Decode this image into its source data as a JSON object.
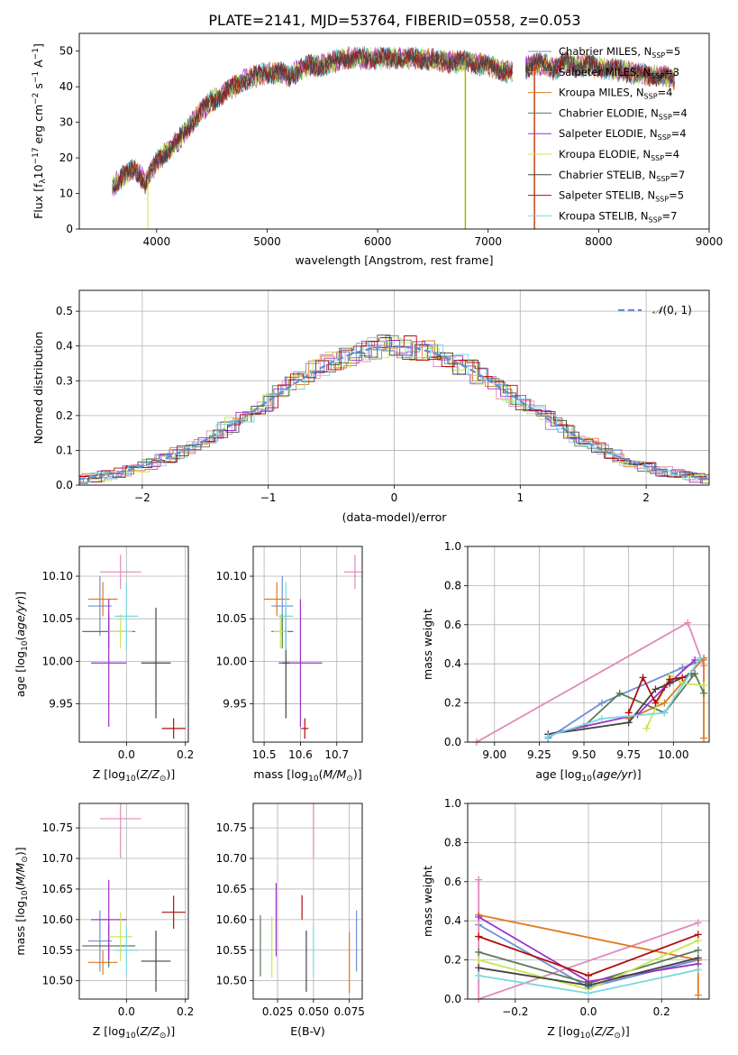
{
  "title": "PLATE=2141, MJD=53764, FIBERID=0558, z=0.053",
  "colors": {
    "Chabrier MILES": "#6f8fd6",
    "Salpeter MILES": "#e08ab8",
    "Kroupa MILES": "#e07a20",
    "Chabrier ELODIE": "#5a7a5a",
    "Salpeter ELODIE": "#9b30c8",
    "Kroupa ELODIE": "#c8e650",
    "Chabrier STELIB": "#444444",
    "Salpeter STELIB": "#b00e0e",
    "Kroupa STELIB": "#7ad8e0",
    "normal": "#5b8fd8",
    "grid": "#b0b0b0"
  },
  "chart_data": [
    {
      "id": "spectrum",
      "type": "line",
      "xlabel": "wavelength [Angstrom, rest frame]",
      "ylabel": "Flux [f",
      "xlim": [
        3300,
        9000
      ],
      "ylim": [
        0,
        55
      ],
      "xticks": [
        "4000",
        "5000",
        "6000",
        "7000",
        "8000",
        "9000"
      ],
      "yticks": [
        "0",
        "10",
        "20",
        "30",
        "40",
        "50"
      ],
      "continuum": [
        [
          3600,
          12
        ],
        [
          3700,
          15
        ],
        [
          3800,
          17
        ],
        [
          3900,
          13
        ],
        [
          4000,
          19
        ],
        [
          4100,
          22
        ],
        [
          4200,
          25
        ],
        [
          4300,
          29
        ],
        [
          4400,
          33
        ],
        [
          4500,
          36
        ],
        [
          4600,
          38
        ],
        [
          4700,
          40
        ],
        [
          4800,
          42
        ],
        [
          4900,
          43
        ],
        [
          5000,
          44
        ],
        [
          5100,
          44
        ],
        [
          5200,
          43
        ],
        [
          5300,
          45
        ],
        [
          5400,
          46
        ],
        [
          5500,
          46
        ],
        [
          5600,
          47
        ],
        [
          5700,
          48
        ],
        [
          5800,
          48
        ],
        [
          5900,
          48
        ],
        [
          6000,
          48
        ],
        [
          6100,
          48
        ],
        [
          6200,
          48
        ],
        [
          6300,
          48
        ],
        [
          6400,
          48
        ],
        [
          6500,
          47.5
        ],
        [
          6600,
          47
        ],
        [
          6700,
          47
        ],
        [
          6800,
          47
        ],
        [
          6900,
          46.5
        ],
        [
          7000,
          46
        ],
        [
          7100,
          45
        ],
        [
          7200,
          44
        ],
        [
          7300,
          45
        ],
        [
          7400,
          46
        ],
        [
          7500,
          46.5
        ],
        [
          7600,
          45
        ],
        [
          7700,
          47
        ],
        [
          7800,
          46
        ],
        [
          7900,
          46
        ],
        [
          8000,
          45.5
        ],
        [
          8100,
          45
        ],
        [
          8200,
          44.5
        ],
        [
          8300,
          44
        ],
        [
          8400,
          43.5
        ],
        [
          8500,
          43
        ],
        [
          8600,
          43
        ],
        [
          8690,
          42
        ]
      ],
      "legend": [
        {
          "label": "Chabrier MILES, N",
          "n": "5"
        },
        {
          "label": "Salpeter MILES, N",
          "n": "3"
        },
        {
          "label": "Kroupa MILES, N",
          "n": "4"
        },
        {
          "label": "Chabrier ELODIE, N",
          "n": "4"
        },
        {
          "label": "Salpeter ELODIE, N",
          "n": "4"
        },
        {
          "label": "Kroupa ELODIE, N",
          "n": "4"
        },
        {
          "label": "Chabrier STELIB, N",
          "n": "7"
        },
        {
          "label": "Salpeter STELIB, N",
          "n": "5"
        },
        {
          "label": "Kroupa STELIB, N",
          "n": "7"
        }
      ]
    },
    {
      "id": "residuals",
      "type": "line",
      "xlabel": "(data-model)/error",
      "ylabel": "Normed distribution",
      "xlim": [
        -2.5,
        2.5
      ],
      "ylim": [
        0,
        0.56
      ],
      "xticks": [
        "-2",
        "-1",
        "0",
        "1",
        "2"
      ],
      "yticks": [
        "0.0",
        "0.1",
        "0.2",
        "0.3",
        "0.4",
        "0.5"
      ],
      "legend_math": "(0, 1)"
    },
    {
      "id": "age-Z",
      "type": "scatter",
      "xlabel": "Z [log",
      "ylabel": "age  [log",
      "xlim": [
        -0.16,
        0.21
      ],
      "ylim": [
        9.905,
        10.135
      ],
      "xticks": [
        "0.0",
        "0.2"
      ],
      "yticks": [
        "9.95",
        "10.00",
        "10.05",
        "10.10"
      ],
      "points": [
        {
          "s": "Chabrier MILES",
          "x": -0.09,
          "y": 10.065,
          "xe": 0.04,
          "ye": 0.035
        },
        {
          "s": "Salpeter MILES",
          "x": -0.02,
          "y": 10.105,
          "xe": 0.07,
          "ye": 0.02
        },
        {
          "s": "Kroupa MILES",
          "x": -0.08,
          "y": 10.073,
          "xe": 0.05,
          "ye": 0.02
        },
        {
          "s": "Chabrier ELODIE",
          "x": -0.06,
          "y": 10.035,
          "xe": 0.09,
          "ye": 0.02
        },
        {
          "s": "Salpeter ELODIE",
          "x": -0.06,
          "y": 9.998,
          "xe": 0.06,
          "ye": 0.075
        },
        {
          "s": "Kroupa ELODIE",
          "x": -0.02,
          "y": 10.035,
          "xe": 0.04,
          "ye": 0.02
        },
        {
          "s": "Chabrier STELIB",
          "x": 0.1,
          "y": 9.998,
          "xe": 0.05,
          "ye": 0.065
        },
        {
          "s": "Salpeter STELIB",
          "x": 0.16,
          "y": 9.921,
          "xe": 0.04,
          "ye": 0.012
        },
        {
          "s": "Kroupa STELIB",
          "x": 0.0,
          "y": 10.053,
          "xe": 0.04,
          "ye": 0.04
        }
      ]
    },
    {
      "id": "age-mass",
      "type": "scatter",
      "xlabel": "mass [log",
      "ylabel": "",
      "xlim": [
        10.47,
        10.77
      ],
      "ylim": [
        9.905,
        10.135
      ],
      "xticks": [
        "10.5",
        "10.6",
        "10.7"
      ],
      "yticks": [
        "9.95",
        "10.00",
        "10.05",
        "10.10"
      ],
      "points": [
        {
          "s": "Chabrier MILES",
          "x": 10.55,
          "y": 10.065,
          "xe": 0.03,
          "ye": 0.035
        },
        {
          "s": "Salpeter MILES",
          "x": 10.75,
          "y": 10.105,
          "xe": 0.03,
          "ye": 0.02
        },
        {
          "s": "Kroupa MILES",
          "x": 10.535,
          "y": 10.073,
          "xe": 0.035,
          "ye": 0.02
        },
        {
          "s": "Chabrier ELODIE",
          "x": 10.55,
          "y": 10.035,
          "xe": 0.03,
          "ye": 0.02
        },
        {
          "s": "Salpeter ELODIE",
          "x": 10.6,
          "y": 9.998,
          "xe": 0.06,
          "ye": 0.075
        },
        {
          "s": "Kroupa ELODIE",
          "x": 10.545,
          "y": 10.035,
          "xe": 0.02,
          "ye": 0.02
        },
        {
          "s": "Chabrier STELIB",
          "x": 10.56,
          "y": 9.998,
          "xe": 0.01,
          "ye": 0.065
        },
        {
          "s": "Salpeter STELIB",
          "x": 10.612,
          "y": 9.921,
          "xe": 0.01,
          "ye": 0.012
        },
        {
          "s": "Kroupa STELIB",
          "x": 10.56,
          "y": 10.053,
          "xe": 0.02,
          "ye": 0.04
        }
      ]
    },
    {
      "id": "weight-age",
      "type": "line",
      "xlabel": "age  [log",
      "ylabel": "mass weight",
      "xlim": [
        8.85,
        10.2
      ],
      "ylim": [
        0,
        1.0
      ],
      "xticks": [
        "9.00",
        "9.25",
        "9.50",
        "9.75",
        "10.00"
      ],
      "yticks": [
        "0.0",
        "0.2",
        "0.4",
        "0.6",
        "0.8",
        "1.0"
      ],
      "series": [
        {
          "s": "Chabrier MILES",
          "x": [
            9.3,
            9.6,
            10.05,
            10.17
          ],
          "y": [
            0.02,
            0.2,
            0.38,
            0.42
          ]
        },
        {
          "s": "Salpeter MILES",
          "x": [
            8.9,
            10.08,
            10.17
          ],
          "y": [
            0.0,
            0.61,
            0.39
          ]
        },
        {
          "s": "Kroupa MILES",
          "x": [
            9.75,
            9.95,
            10.17,
            10.17
          ],
          "y": [
            0.12,
            0.2,
            0.43,
            0.02
          ]
        },
        {
          "s": "Chabrier ELODIE",
          "x": [
            9.5,
            9.7,
            9.95,
            10.12,
            10.17
          ],
          "y": [
            0.08,
            0.25,
            0.15,
            0.35,
            0.25
          ]
        },
        {
          "s": "Salpeter ELODIE",
          "x": [
            9.3,
            9.8,
            9.95,
            10.12
          ],
          "y": [
            0.04,
            0.14,
            0.28,
            0.42
          ]
        },
        {
          "s": "Kroupa ELODIE",
          "x": [
            9.85,
            9.98,
            10.05,
            10.17
          ],
          "y": [
            0.07,
            0.34,
            0.3,
            0.29
          ]
        },
        {
          "s": "Chabrier STELIB",
          "x": [
            9.3,
            9.75,
            9.9,
            9.98,
            10.1
          ],
          "y": [
            0.04,
            0.1,
            0.27,
            0.3,
            0.35
          ]
        },
        {
          "s": "Salpeter STELIB",
          "x": [
            9.75,
            9.83,
            9.9,
            9.98,
            10.05
          ],
          "y": [
            0.15,
            0.33,
            0.2,
            0.32,
            0.33
          ]
        },
        {
          "s": "Kroupa STELIB",
          "x": [
            9.3,
            9.6,
            9.95,
            10.15
          ],
          "y": [
            0.03,
            0.12,
            0.15,
            0.43
          ]
        }
      ]
    },
    {
      "id": "mass-Z",
      "type": "scatter",
      "xlabel": "Z [log",
      "ylabel": "mass [log",
      "xlim": [
        -0.16,
        0.21
      ],
      "ylim": [
        10.47,
        10.79
      ],
      "xticks": [
        "0.0",
        "0.2"
      ],
      "yticks": [
        "10.50",
        "10.55",
        "10.60",
        "10.65",
        "10.70",
        "10.75"
      ],
      "points": [
        {
          "s": "Chabrier MILES",
          "x": -0.09,
          "y": 10.565,
          "xe": 0.04,
          "ye": 0.05
        },
        {
          "s": "Salpeter MILES",
          "x": -0.02,
          "y": 10.765,
          "xe": 0.07,
          "ye": 0.065
        },
        {
          "s": "Kroupa MILES",
          "x": -0.08,
          "y": 10.53,
          "xe": 0.05,
          "ye": 0.02
        },
        {
          "s": "Chabrier ELODIE",
          "x": -0.06,
          "y": 10.557,
          "xe": 0.09,
          "ye": 0.035
        },
        {
          "s": "Salpeter ELODIE",
          "x": -0.06,
          "y": 10.6,
          "xe": 0.06,
          "ye": 0.065
        },
        {
          "s": "Kroupa ELODIE",
          "x": -0.02,
          "y": 10.572,
          "xe": 0.04,
          "ye": 0.04
        },
        {
          "s": "Chabrier STELIB",
          "x": 0.1,
          "y": 10.532,
          "xe": 0.05,
          "ye": 0.05
        },
        {
          "s": "Salpeter STELIB",
          "x": 0.16,
          "y": 10.612,
          "xe": 0.04,
          "ye": 0.027
        },
        {
          "s": "Kroupa STELIB",
          "x": 0.0,
          "y": 10.55,
          "xe": 0.04,
          "ye": 0.04
        }
      ]
    },
    {
      "id": "mass-EBV",
      "type": "scatter",
      "xlabel": "E(B-V)",
      "ylabel": "",
      "xlim": [
        0.008,
        0.084
      ],
      "ylim": [
        10.47,
        10.79
      ],
      "xticks": [
        "0.025",
        "0.050",
        "0.075"
      ],
      "yticks": [
        "10.50",
        "10.55",
        "10.60",
        "10.65",
        "10.70",
        "10.75"
      ],
      "points": [
        {
          "s": "Chabrier MILES",
          "x": 0.08,
          "y": 10.565,
          "xe": 0,
          "ye": 0.05
        },
        {
          "s": "Salpeter MILES",
          "x": 0.05,
          "y": 10.765,
          "xe": 0,
          "ye": 0.065
        },
        {
          "s": "Kroupa MILES",
          "x": 0.075,
          "y": 10.53,
          "xe": 0,
          "ye": 0.05
        },
        {
          "s": "Chabrier ELODIE",
          "x": 0.013,
          "y": 10.557,
          "xe": 0,
          "ye": 0.05
        },
        {
          "s": "Salpeter ELODIE",
          "x": 0.024,
          "y": 10.6,
          "xe": 0,
          "ye": 0.06
        },
        {
          "s": "Kroupa ELODIE",
          "x": 0.021,
          "y": 10.555,
          "xe": 0,
          "ye": 0.05
        },
        {
          "s": "Chabrier STELIB",
          "x": 0.045,
          "y": 10.532,
          "xe": 0,
          "ye": 0.05
        },
        {
          "s": "Salpeter STELIB",
          "x": 0.042,
          "y": 10.62,
          "xe": 0,
          "ye": 0.02
        },
        {
          "s": "Kroupa STELIB",
          "x": 0.05,
          "y": 10.55,
          "xe": 0,
          "ye": 0.04
        }
      ]
    },
    {
      "id": "weight-Z",
      "type": "line",
      "xlabel": "Z [log",
      "ylabel": "mass weight",
      "xlim": [
        -0.33,
        0.33
      ],
      "ylim": [
        0,
        1.0
      ],
      "xticks": [
        "-0.2",
        "0.0",
        "0.2"
      ],
      "yticks": [
        "0.0",
        "0.2",
        "0.4",
        "0.6",
        "0.8",
        "1.0"
      ],
      "series": [
        {
          "s": "Chabrier MILES",
          "x": [
            -0.3,
            0.0,
            0.3
          ],
          "y": [
            0.38,
            0.06,
            0.2
          ]
        },
        {
          "s": "Salpeter MILES",
          "x": [
            -0.3,
            -0.3,
            0.3
          ],
          "y": [
            0.61,
            0.0,
            0.39
          ]
        },
        {
          "s": "Kroupa MILES",
          "x": [
            -0.3,
            0.3,
            0.3
          ],
          "y": [
            0.43,
            0.2,
            0.02
          ]
        },
        {
          "s": "Chabrier ELODIE",
          "x": [
            -0.3,
            0.0,
            0.3
          ],
          "y": [
            0.24,
            0.08,
            0.25
          ]
        },
        {
          "s": "Salpeter ELODIE",
          "x": [
            -0.3,
            0.0,
            0.3
          ],
          "y": [
            0.42,
            0.09,
            0.18
          ]
        },
        {
          "s": "Kroupa ELODIE",
          "x": [
            -0.3,
            0.0,
            0.3
          ],
          "y": [
            0.2,
            0.05,
            0.3
          ]
        },
        {
          "s": "Chabrier STELIB",
          "x": [
            -0.3,
            0.0,
            0.3
          ],
          "y": [
            0.16,
            0.07,
            0.21
          ]
        },
        {
          "s": "Salpeter STELIB",
          "x": [
            -0.3,
            0.0,
            0.3
          ],
          "y": [
            0.32,
            0.12,
            0.33
          ]
        },
        {
          "s": "Kroupa STELIB",
          "x": [
            -0.3,
            0.0,
            0.3
          ],
          "y": [
            0.12,
            0.03,
            0.15
          ]
        }
      ]
    }
  ]
}
